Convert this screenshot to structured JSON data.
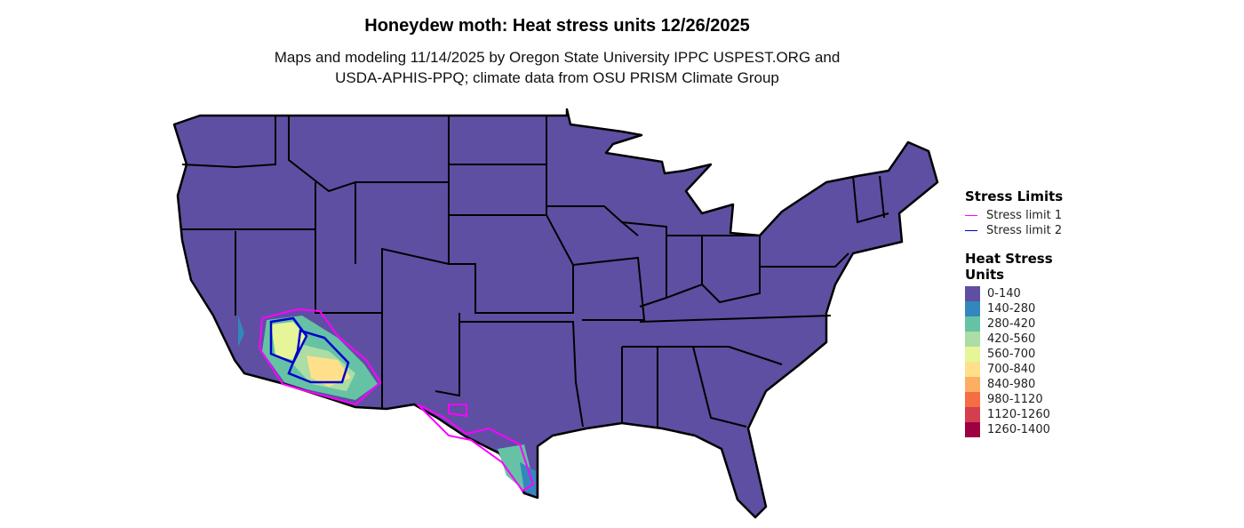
{
  "title": "Honeydew moth: Heat stress units 12/26/2025",
  "subtitle_line1": "Maps and modeling 11/14/2025 by Oregon State University IPPC USPEST.ORG and",
  "subtitle_line2": "USDA-APHIS-PPQ; climate data from OSU PRISM Climate Group",
  "legend": {
    "stress_title": "Stress Limits",
    "stress_items": [
      {
        "label": "Stress limit 1",
        "color": "#FF00FF"
      },
      {
        "label": "Stress limit 2",
        "color": "#0000CC"
      }
    ],
    "heat_title_1": "Heat Stress",
    "heat_title_2": "Units",
    "heat_items": [
      {
        "label": "0-140",
        "color": "#5E4FA2"
      },
      {
        "label": "140-280",
        "color": "#3288BD"
      },
      {
        "label": "280-420",
        "color": "#66C2A5"
      },
      {
        "label": "420-560",
        "color": "#ABDDA4"
      },
      {
        "label": "560-700",
        "color": "#E6F598"
      },
      {
        "label": "700-840",
        "color": "#FEE08B"
      },
      {
        "label": "840-980",
        "color": "#FDAE61"
      },
      {
        "label": "980-1120",
        "color": "#F46D43"
      },
      {
        "label": "1120-1260",
        "color": "#D53E4F"
      },
      {
        "label": "1260-1400",
        "color": "#9E0142"
      }
    ]
  }
}
